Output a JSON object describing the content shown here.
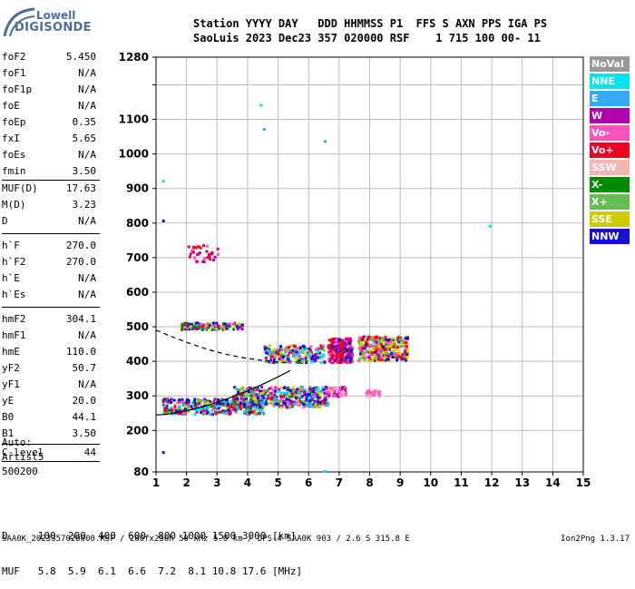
{
  "logo": {
    "line1": "Lowell",
    "line2": "DIGISONDE"
  },
  "header": {
    "row1": "Station YYYY DAY   DDD HHMMSS P1  FFS S AXN PPS IGA PS",
    "row2": "SaoLuis 2023 Dec23 357 020000 RSF    1 715 100 00- 11"
  },
  "params": [
    {
      "k": "foF2",
      "v": "5.450"
    },
    {
      "k": "foF1",
      "v": "N/A"
    },
    {
      "k": "foF1p",
      "v": "N/A"
    },
    {
      "k": "foE",
      "v": "N/A"
    },
    {
      "k": "foEp",
      "v": "0.35"
    },
    {
      "k": "fxI",
      "v": "5.65"
    },
    {
      "k": "foEs",
      "v": "N/A"
    },
    {
      "k": "fmin",
      "v": "3.50"
    }
  ],
  "params2": [
    {
      "k": "MUF(D)",
      "v": "17.63"
    },
    {
      "k": "M(D)",
      "v": "3.23"
    },
    {
      "k": "D",
      "v": "N/A"
    }
  ],
  "params3": [
    {
      "k": "h`F",
      "v": "270.0"
    },
    {
      "k": "h`F2",
      "v": "270.0"
    },
    {
      "k": "h`E",
      "v": "N/A"
    },
    {
      "k": "h`Es",
      "v": "N/A"
    }
  ],
  "params4": [
    {
      "k": "hmF2",
      "v": "304.1"
    },
    {
      "k": "hmF1",
      "v": "N/A"
    },
    {
      "k": "hmE",
      "v": "110.0"
    },
    {
      "k": "yF2",
      "v": "50.7"
    },
    {
      "k": "yF1",
      "v": "N/A"
    },
    {
      "k": "yE",
      "v": "20.0"
    },
    {
      "k": "B0",
      "v": "44.1"
    },
    {
      "k": "B1",
      "v": "3.50"
    }
  ],
  "clevel": {
    "k": "C-level",
    "v": "44"
  },
  "auto": [
    "Auto:",
    "Artist5",
    "500200"
  ],
  "legend": [
    {
      "label": "NoVal",
      "color": "#999999"
    },
    {
      "label": "NNE",
      "color": "#00e5ee"
    },
    {
      "label": "E",
      "color": "#33aaff"
    },
    {
      "label": "W",
      "color": "#b000b0"
    },
    {
      "label": "Vo-",
      "color": "#ff55bb"
    },
    {
      "label": "Vo+",
      "color": "#ee0022"
    },
    {
      "label": "SSW",
      "color": "#f5b5b5"
    },
    {
      "label": "X-",
      "color": "#008800"
    },
    {
      "label": "X+",
      "color": "#66bb55"
    },
    {
      "label": "SSE",
      "color": "#cccc00"
    },
    {
      "label": "NNW",
      "color": "#1a10cc"
    }
  ],
  "chart_data": {
    "type": "scatter",
    "x_ticks": [
      1,
      2,
      3,
      4,
      5,
      6,
      7,
      8,
      9,
      10,
      11,
      12,
      13,
      14,
      15
    ],
    "y_ticks": [
      80,
      200,
      300,
      400,
      500,
      600,
      700,
      800,
      900,
      1000,
      1100,
      1200,
      1280
    ],
    "y_tick_labels": [
      "80",
      "200",
      "300",
      "400",
      "500",
      "600",
      "700",
      "800",
      "900",
      "1000",
      "1100",
      "1280"
    ],
    "xlim": [
      1,
      15
    ],
    "ylim": [
      80,
      1280
    ],
    "grid": true
  },
  "muf_table": {
    "row1": "D     100  200  400  600  800 1000 1500 3000 [km]",
    "row2": "MUF   5.8  5.9  6.1  6.6  7.2  8.1 10.8 17.6 [MHz]"
  },
  "footer": "SAA0K_2023357020000.RSF / 280fx256h 50 kHz 5.0 km / DPS-4 SAA0K 903 / 2.6 S 315.8 E",
  "version": "Ion2Png 1.3.17"
}
